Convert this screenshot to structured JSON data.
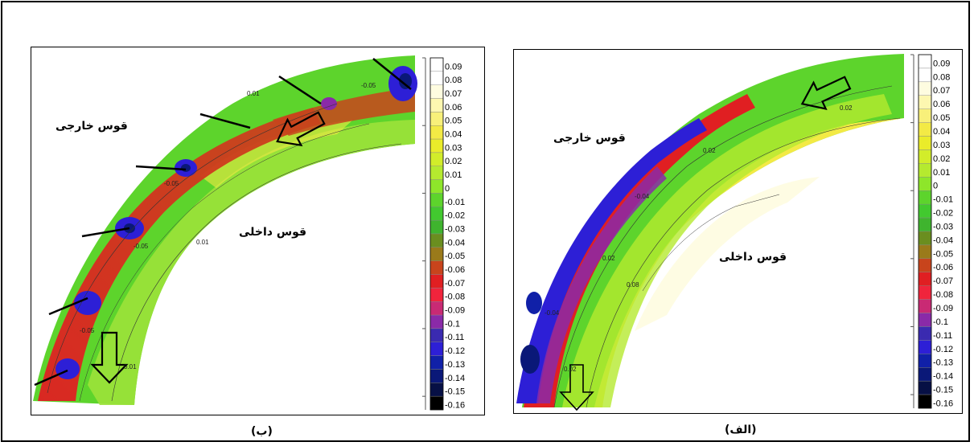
{
  "captions": {
    "right": "(الف)",
    "left": "(ب)"
  },
  "panels": {
    "left": {
      "outer_bank_label": "قوس خارجی",
      "inner_bank_label": "قوس داخلی",
      "contour_labels": [
        "0.01",
        "-0.05",
        "-0.05",
        "-0.05",
        "0.01",
        "0.01",
        "-0.05"
      ]
    },
    "right": {
      "outer_bank_label": "قوس خارجی",
      "inner_bank_label": "قوس داخلی",
      "contour_labels": [
        "0.02",
        "0.02",
        "-0.04",
        "0.02",
        "0.08",
        "0.02",
        "-0.04"
      ]
    }
  },
  "legend": {
    "levels": [
      "0.09",
      "0.08",
      "0.07",
      "0.06",
      "0.05",
      "0.04",
      "0.03",
      "0.02",
      "0.01",
      "0",
      "-0.01",
      "-0.02",
      "-0.03",
      "-0.04",
      "-0.05",
      "-0.06",
      "-0.07",
      "-0.08",
      "-0.09",
      "-0.1",
      "-0.11",
      "-0.12",
      "-0.13",
      "-0.14",
      "-0.15",
      "-0.16"
    ],
    "colors": [
      "#ffffff",
      "#ffffff",
      "#fefce0",
      "#fdf7b0",
      "#f8f07a",
      "#f3ea45",
      "#eaec2a",
      "#d2ed2a",
      "#b5ea2f",
      "#8ee62a",
      "#5dd42c",
      "#42c92f",
      "#3fb42e",
      "#6a8e1f",
      "#9a7a1a",
      "#c8441c",
      "#e01f22",
      "#f0243c",
      "#c92a74",
      "#8a2aa8",
      "#3a2ab0",
      "#2d1fd6",
      "#1020a8",
      "#0a1878",
      "#071045",
      "#000000"
    ]
  },
  "colors": {
    "yellow_light": "#fefce0",
    "green": "#5dd42c",
    "red": "#e01f22",
    "blue": "#2d1fd6"
  }
}
